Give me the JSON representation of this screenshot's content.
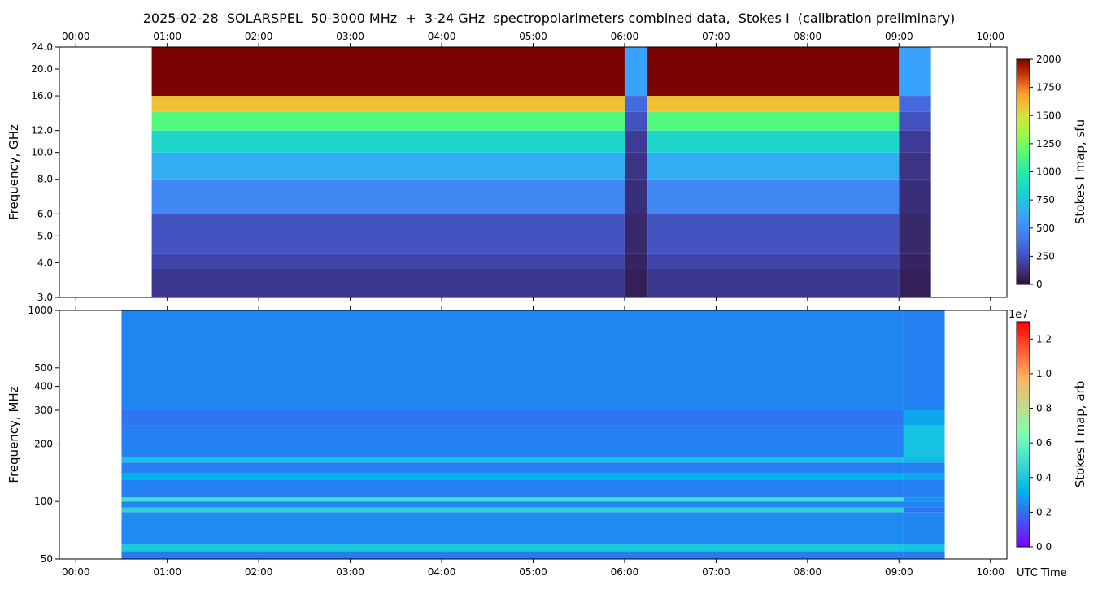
{
  "chart_data": [
    {
      "type": "heatmap",
      "title": "2025-02-28  SOLARSPEL  50-3000 MHz  +  3-24 GHz  spectropolarimeters combined data,  Stokes I  (calibration preliminary)",
      "ylabel": "Frequency, GHz",
      "yscale": "log",
      "xlim": [
        -0.18,
        10.18
      ],
      "xticks": [
        {
          "value": 0,
          "label": "00:00"
        },
        {
          "value": 1,
          "label": "01:00"
        },
        {
          "value": 2,
          "label": "02:00"
        },
        {
          "value": 3,
          "label": "03:00"
        },
        {
          "value": 4,
          "label": "04:00"
        },
        {
          "value": 5,
          "label": "05:00"
        },
        {
          "value": 6,
          "label": "06:00"
        },
        {
          "value": 7,
          "label": "07:00"
        },
        {
          "value": 8,
          "label": "08:00"
        },
        {
          "value": 9,
          "label": "09:00"
        },
        {
          "value": 10,
          "label": "10:00"
        }
      ],
      "xtick_side": "top",
      "ylim": [
        3,
        24
      ],
      "yticks": [
        {
          "value": 3,
          "label": "3.0"
        },
        {
          "value": 4,
          "label": "4.0"
        },
        {
          "value": 5,
          "label": "5.0"
        },
        {
          "value": 6,
          "label": "6.0"
        },
        {
          "value": 8,
          "label": "8.0"
        },
        {
          "value": 10,
          "label": "10.0"
        },
        {
          "value": 12,
          "label": "12.0"
        },
        {
          "value": 16,
          "label": "16.0"
        },
        {
          "value": 20,
          "label": "20.0"
        },
        {
          "value": 24,
          "label": "24.0"
        }
      ],
      "x_edges": [
        0.83,
        6.0,
        6.25,
        9.0,
        9.35
      ],
      "y_edges": [
        3,
        3.8,
        4.3,
        6,
        8,
        10,
        12,
        14,
        16,
        24
      ],
      "z": [
        [
          150,
          50,
          150,
          50
        ],
        [
          200,
          70,
          200,
          70
        ],
        [
          260,
          90,
          260,
          90
        ],
        [
          480,
          110,
          480,
          110
        ],
        [
          650,
          130,
          650,
          130
        ],
        [
          850,
          160,
          850,
          160
        ],
        [
          1150,
          250,
          1150,
          250
        ],
        [
          1600,
          350,
          1600,
          350
        ],
        [
          2000,
          600,
          2000,
          600
        ]
      ],
      "colormap": "turbo",
      "zlim": [
        0,
        2000
      ],
      "zticks": [
        0,
        250,
        500,
        750,
        1000,
        1250,
        1500,
        1750,
        2000
      ],
      "zlabel": "Stokes I map, sfu"
    },
    {
      "type": "heatmap",
      "ylabel": "Frequency, MHz",
      "xlabel": "UTC Time",
      "yscale": "log",
      "xlim": [
        -0.18,
        10.18
      ],
      "xticks": [
        {
          "value": 0,
          "label": "00:00"
        },
        {
          "value": 1,
          "label": "01:00"
        },
        {
          "value": 2,
          "label": "02:00"
        },
        {
          "value": 3,
          "label": "03:00"
        },
        {
          "value": 4,
          "label": "04:00"
        },
        {
          "value": 5,
          "label": "05:00"
        },
        {
          "value": 6,
          "label": "06:00"
        },
        {
          "value": 7,
          "label": "07:00"
        },
        {
          "value": 8,
          "label": "08:00"
        },
        {
          "value": 9,
          "label": "09:00"
        },
        {
          "value": 10,
          "label": "10:00"
        }
      ],
      "xtick_side": "bottom",
      "ylim": [
        50,
        1000
      ],
      "yticks": [
        50,
        100,
        200,
        300,
        400,
        500,
        1000
      ],
      "x_edges": [
        0.5,
        9.05,
        9.5
      ],
      "y_edges": [
        50,
        55,
        60,
        88,
        93,
        100,
        105,
        130,
        140,
        160,
        170,
        250,
        300,
        1000
      ],
      "z": [
        [
          2200000,
          2200000
        ],
        [
          4000000,
          3800000
        ],
        [
          2500000,
          2400000
        ],
        [
          4500000,
          2000000
        ],
        [
          2400000,
          2400000
        ],
        [
          5000000,
          2600000
        ],
        [
          2300000,
          2300000
        ],
        [
          3200000,
          3000000
        ],
        [
          2300000,
          2300000
        ],
        [
          3800000,
          3600000
        ],
        [
          2300000,
          3800000
        ],
        [
          2100000,
          3000000
        ],
        [
          2400000,
          2300000
        ]
      ],
      "colormap": "rainbow",
      "zlim": [
        0,
        13000000
      ],
      "zticks": [
        {
          "value": 0,
          "label": "0.0"
        },
        {
          "value": 2000000,
          "label": "0.2"
        },
        {
          "value": 4000000,
          "label": "0.4"
        },
        {
          "value": 6000000,
          "label": "0.6"
        },
        {
          "value": 8000000,
          "label": "0.8"
        },
        {
          "value": 10000000,
          "label": "1.0"
        },
        {
          "value": 12000000,
          "label": "1.2"
        }
      ],
      "zoffset_label": "1e7",
      "zlabel": "Stokes I map, arb"
    }
  ]
}
